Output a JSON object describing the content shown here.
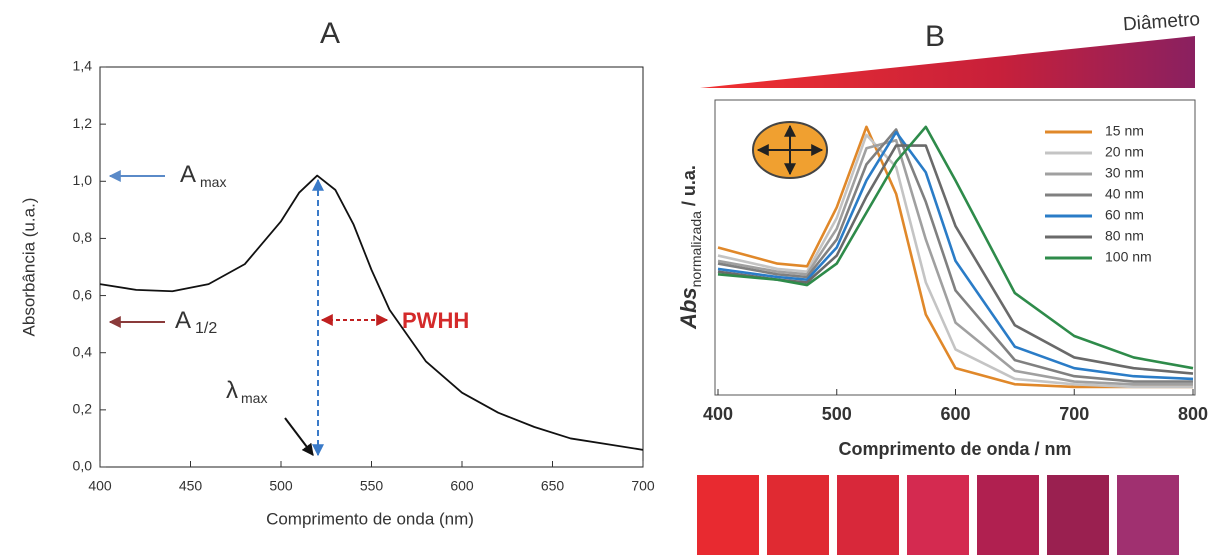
{
  "chart_data": [
    {
      "type": "line",
      "title": "A",
      "xlabel": "Comprimento de onda (nm)",
      "ylabel": "Absorbância (u.a.)",
      "x": [
        400,
        420,
        440,
        460,
        480,
        500,
        510,
        520,
        530,
        540,
        550,
        560,
        580,
        600,
        620,
        640,
        660,
        680,
        700
      ],
      "values": [
        0.64,
        0.62,
        0.615,
        0.64,
        0.71,
        0.86,
        0.96,
        1.02,
        0.97,
        0.85,
        0.69,
        0.55,
        0.37,
        0.26,
        0.19,
        0.14,
        0.1,
        0.08,
        0.06
      ],
      "color": "#111111",
      "xlim": [
        400,
        700
      ],
      "xticks": [
        400,
        450,
        500,
        550,
        600,
        650,
        700
      ],
      "ylim": [
        0,
        1.4
      ],
      "yticks": [
        {
          "value": 0,
          "label": "0,0"
        },
        {
          "value": 0.2,
          "label": "0,2"
        },
        {
          "value": 0.4,
          "label": "0,4"
        },
        {
          "value": 0.6,
          "label": "0,6"
        },
        {
          "value": 0.8,
          "label": "0,8"
        },
        {
          "value": 1.0,
          "label": "1,0"
        },
        {
          "value": 1.2,
          "label": "1,2"
        },
        {
          "value": 1.4,
          "label": "1,4"
        }
      ],
      "annotations": [
        {
          "text": "A",
          "sub": "max"
        },
        {
          "text": "A",
          "sub": "1/2"
        },
        {
          "text": "λ",
          "sub": "max"
        },
        {
          "text": "PWHH"
        }
      ]
    },
    {
      "type": "line",
      "title": "B",
      "xlabel": "Comprimento de onda / nm",
      "ylabel": {
        "text": "Abs",
        "sub": "normalizada",
        "after": "/ u.a."
      },
      "annotations": [
        {
          "text": "Diâmetro"
        }
      ],
      "x": [
        400,
        450,
        475,
        500,
        525,
        550,
        575,
        600,
        650,
        700,
        750,
        800
      ],
      "xlim": [
        400,
        800
      ],
      "xticks": [
        400,
        500,
        600,
        700,
        800
      ],
      "ylim": [
        0,
        1.1
      ],
      "series": [
        {
          "name": "15 nm",
          "color": "#e0882a",
          "values": [
            0.55,
            0.49,
            0.48,
            0.7,
            1.0,
            0.75,
            0.3,
            0.1,
            0.04,
            0.03,
            0.03,
            0.03
          ]
        },
        {
          "name": "20 nm",
          "color": "#c4c4c4",
          "values": [
            0.52,
            0.47,
            0.46,
            0.66,
            0.97,
            0.85,
            0.42,
            0.17,
            0.06,
            0.04,
            0.03,
            0.03
          ]
        },
        {
          "name": "30 nm",
          "color": "#a0a0a0",
          "values": [
            0.5,
            0.46,
            0.45,
            0.62,
            0.92,
            0.95,
            0.58,
            0.27,
            0.09,
            0.05,
            0.04,
            0.04
          ]
        },
        {
          "name": "40 nm",
          "color": "#808080",
          "values": [
            0.49,
            0.45,
            0.44,
            0.58,
            0.86,
            0.99,
            0.72,
            0.39,
            0.13,
            0.07,
            0.05,
            0.05
          ]
        },
        {
          "name": "60 nm",
          "color": "#2a7cc7",
          "values": [
            0.47,
            0.44,
            0.43,
            0.55,
            0.8,
            0.98,
            0.83,
            0.5,
            0.18,
            0.1,
            0.07,
            0.06
          ]
        },
        {
          "name": "80 nm",
          "color": "#6a6a6a",
          "values": [
            0.46,
            0.43,
            0.42,
            0.52,
            0.74,
            0.93,
            0.93,
            0.63,
            0.26,
            0.14,
            0.1,
            0.08
          ]
        },
        {
          "name": "100 nm",
          "color": "#2e8b4a",
          "values": [
            0.45,
            0.43,
            0.41,
            0.49,
            0.68,
            0.87,
            1.0,
            0.8,
            0.38,
            0.22,
            0.14,
            0.1
          ]
        }
      ]
    }
  ]
}
